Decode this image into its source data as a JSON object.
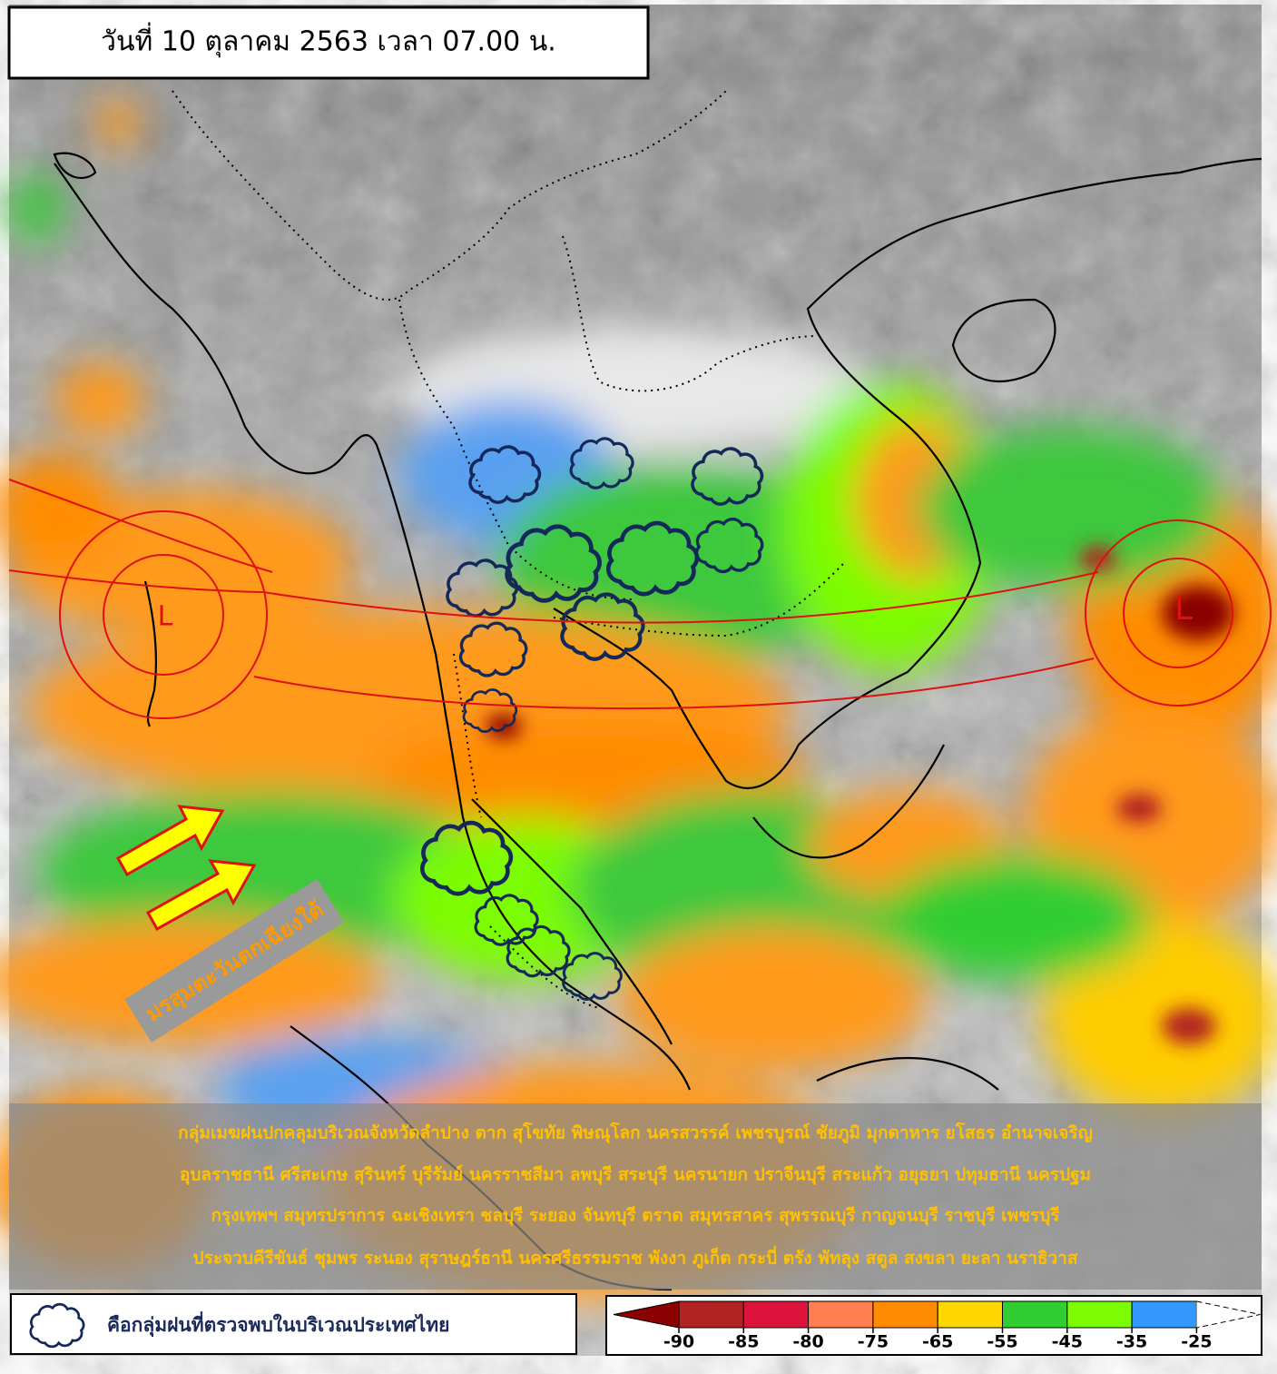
{
  "header": {
    "title": "วันที่ 10 ตุลาคม 2563 เวลา 07.00 น."
  },
  "lows": [
    {
      "label": "L"
    },
    {
      "label": "L"
    }
  ],
  "monsoon_label": "มรสุมตะวันตกเฉียงใต้",
  "description": {
    "lines": [
      "กลุ่มเมฆฝนปกคลุมบริเวณจังหวัดลำปาง ตาก สุโขทัย พิษณุโลก นครสวรรค์ เพชรบูรณ์ ชัยภูมิ มุกดาหาร ยโสธร อำนาจเจริญ",
      "อุบลราชธานี ศรีสะเกษ สุรินทร์ บุรีรัมย์ นครราชสีมา ลพบุรี สระบุรี นครนายก ปราจีนบุรี สระแก้ว อยุธยา ปทุมธานี นครปฐม",
      "กรุงเทพฯ สมุทรปราการ ฉะเชิงเทรา ชลบุรี ระยอง จันทบุรี ตราด สมุทรสาคร สุพรรณบุรี กาญจนบุรี ราชบุรี เพชรบุรี",
      "ประจวบคีรีขันธ์ ชุมพร ระนอง สุราษฎร์ธานี นครศรีธรรมราช พังงา ภูเก็ต กระบี่ ตรัง พัทลุง สตูล สงขลา ยะลา นราธิวาส"
    ]
  },
  "legend": {
    "cloud_label": "คือกลุ่มฝนที่ตรวจพบในบริเวณประเทศไทย"
  },
  "color_scale": {
    "colors": [
      "#8b0000",
      "#b22222",
      "#dc143c",
      "#ff7f50",
      "#ff8c00",
      "#ffd700",
      "#32cd32",
      "#7cfc00",
      "#3399ff",
      "#ffffff"
    ],
    "ticks": [
      -90,
      -85,
      -80,
      -75,
      -65,
      -55,
      -45,
      -35,
      -25
    ]
  }
}
